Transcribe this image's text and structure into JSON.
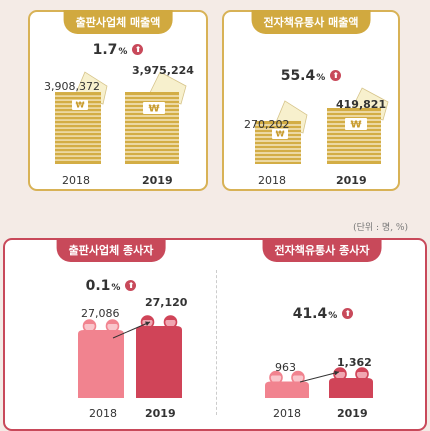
{
  "chart_data": [
    {
      "type": "bar",
      "title": "출판사업체 매출액",
      "categories": [
        "2018",
        "2019"
      ],
      "values": [
        3908372,
        3975224
      ],
      "value_labels": [
        "3,908,372",
        "3,975,224"
      ],
      "change_value": "1.7",
      "change_unit": "%",
      "change_direction": "up",
      "color": "#d1a93f"
    },
    {
      "type": "bar",
      "title": "전자책유통사 매출액",
      "categories": [
        "2018",
        "2019"
      ],
      "values": [
        270202,
        419821
      ],
      "value_labels": [
        "270,202",
        "419,821"
      ],
      "change_value": "55.4",
      "change_unit": "%",
      "change_direction": "up",
      "color": "#d1a93f"
    },
    {
      "type": "bar",
      "title": "출판사업체 종사자",
      "categories": [
        "2018",
        "2019"
      ],
      "values": [
        27086,
        27120
      ],
      "value_labels": [
        "27,086",
        "27,120"
      ],
      "change_value": "0.1",
      "change_unit": "%",
      "change_direction": "up",
      "colors": [
        "#f1838f",
        "#d04458"
      ]
    },
    {
      "type": "bar",
      "title": "전자책유통사 종사자",
      "categories": [
        "2018",
        "2019"
      ],
      "values": [
        963,
        1362
      ],
      "value_labels": [
        "963",
        "1,362"
      ],
      "change_value": "41.4",
      "change_unit": "%",
      "change_direction": "up",
      "colors": [
        "#f1838f",
        "#d04458"
      ]
    }
  ],
  "unit_note": "(단위 : 명, %)",
  "currency_symbol": "₩",
  "up_symbol": "⬆"
}
